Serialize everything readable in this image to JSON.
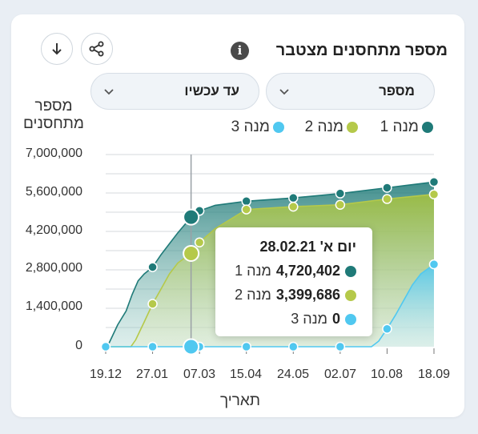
{
  "title": "מספר מתחסנים מצטבר",
  "filters": {
    "metric": "מספר",
    "range": "עד עכשיו"
  },
  "icons": {
    "info": "info-icon",
    "share": "share-icon",
    "download": "download-arrow-icon",
    "chevron": "chevron-down-icon"
  },
  "colors": {
    "dose1": "#1f7a78",
    "dose2": "#b5c94a",
    "dose3": "#50c8f0",
    "grid": "#d4d9de",
    "crosshair": "#9aa0a6"
  },
  "chart_data": {
    "type": "area",
    "ylabel": "מספר מתחסנים",
    "xlabel": "תאריך",
    "ylim": [
      0,
      7000000
    ],
    "yticks": [
      "7,000,000",
      "5,600,000",
      "4,200,000",
      "2,800,000",
      "1,400,000",
      "0"
    ],
    "yticks_values": [
      7000000,
      5600000,
      4200000,
      2800000,
      1400000,
      0
    ],
    "x_ticks": [
      "19.12",
      "27.01",
      "07.03",
      "15.04",
      "24.05",
      "02.07",
      "10.08",
      "18.09"
    ],
    "x_range": [
      "2020-12-19",
      "2021-09-18"
    ],
    "grid": true,
    "legend_position": "top-right",
    "series": [
      {
        "name": "מנה 1",
        "points": [
          [
            "2020-12-19",
            0
          ],
          [
            "2020-12-22",
            150000
          ],
          [
            "2020-12-29",
            800000
          ],
          [
            "2021-01-05",
            1300000
          ],
          [
            "2021-01-10",
            1900000
          ],
          [
            "2021-01-15",
            2400000
          ],
          [
            "2021-01-20",
            2650000
          ],
          [
            "2021-01-27",
            2900000
          ],
          [
            "2021-02-03",
            3350000
          ],
          [
            "2021-02-10",
            3750000
          ],
          [
            "2021-02-17",
            4150000
          ],
          [
            "2021-02-28",
            4720402
          ],
          [
            "2021-03-07",
            4950000
          ],
          [
            "2021-03-20",
            5150000
          ],
          [
            "2021-04-15",
            5300000
          ],
          [
            "2021-05-24",
            5420000
          ],
          [
            "2021-07-02",
            5580000
          ],
          [
            "2021-08-10",
            5790000
          ],
          [
            "2021-09-18",
            6000000
          ]
        ]
      },
      {
        "name": "מנה 2",
        "points": [
          [
            "2020-12-19",
            0
          ],
          [
            "2021-01-09",
            0
          ],
          [
            "2021-01-13",
            250000
          ],
          [
            "2021-01-20",
            900000
          ],
          [
            "2021-01-27",
            1560000
          ],
          [
            "2021-02-03",
            2100000
          ],
          [
            "2021-02-10",
            2650000
          ],
          [
            "2021-02-17",
            3050000
          ],
          [
            "2021-02-28",
            3399686
          ],
          [
            "2021-03-07",
            3800000
          ],
          [
            "2021-03-20",
            4300000
          ],
          [
            "2021-04-15",
            5000000
          ],
          [
            "2021-05-24",
            5100000
          ],
          [
            "2021-07-02",
            5170000
          ],
          [
            "2021-08-10",
            5380000
          ],
          [
            "2021-09-18",
            5550000
          ]
        ]
      },
      {
        "name": "מנה 3",
        "points": [
          [
            "2020-12-19",
            0
          ],
          [
            "2021-07-28",
            0
          ],
          [
            "2021-08-03",
            200000
          ],
          [
            "2021-08-10",
            650000
          ],
          [
            "2021-08-17",
            1150000
          ],
          [
            "2021-08-24",
            1700000
          ],
          [
            "2021-08-31",
            2250000
          ],
          [
            "2021-09-07",
            2650000
          ],
          [
            "2021-09-18",
            3000000
          ]
        ]
      }
    ],
    "marker_dates": [
      "2021-01-27",
      "2021-03-07",
      "2021-04-15",
      "2021-05-24",
      "2021-07-02",
      "2021-08-10",
      "2021-09-18"
    ],
    "highlight_date": "2021-02-28",
    "tooltip": {
      "date": "יום א' 28.02.21",
      "rows": [
        {
          "name": "מנה 1",
          "value": "4,720,402"
        },
        {
          "name": "מנה 2",
          "value": "3,399,686"
        },
        {
          "name": "מנה 3",
          "value": "0"
        }
      ]
    }
  }
}
